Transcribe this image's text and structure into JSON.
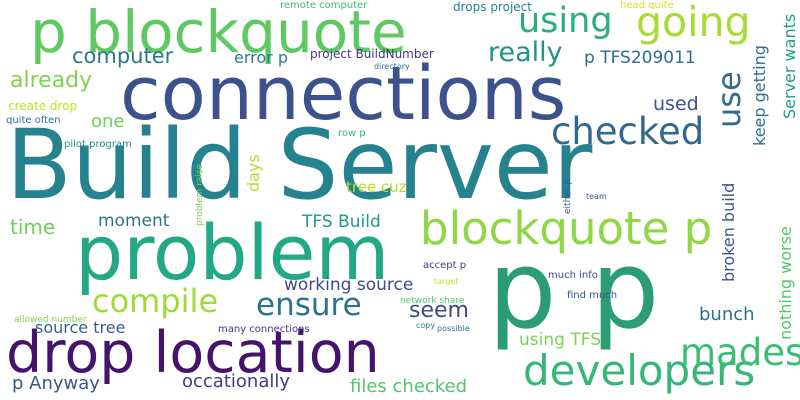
{
  "words": [
    {
      "id": "build-server",
      "text": "Build Server",
      "color": "#26828e"
    },
    {
      "id": "connections",
      "text": "connections",
      "color": "#3b528b"
    },
    {
      "id": "problem",
      "text": "problem",
      "color": "#22a884"
    },
    {
      "id": "p-p",
      "text": "p p",
      "color": "#2a9d74"
    },
    {
      "id": "drop-location",
      "text": "drop location",
      "color": "#44146b"
    },
    {
      "id": "p-blockquote",
      "text": "p blockquote",
      "color": "#5ec962"
    },
    {
      "id": "blockquote-p",
      "text": "blockquote p",
      "color": "#8fd744"
    },
    {
      "id": "developers",
      "text": "developers",
      "color": "#35b779"
    },
    {
      "id": "checked",
      "text": "checked",
      "color": "#31688e"
    },
    {
      "id": "compile",
      "text": "compile",
      "color": "#a0da39"
    },
    {
      "id": "ensure",
      "text": "ensure",
      "color": "#2c728e"
    },
    {
      "id": "using",
      "text": "using",
      "color": "#29af7f"
    },
    {
      "id": "going",
      "text": "going",
      "color": "#a8db34"
    },
    {
      "id": "mades",
      "text": "mades",
      "color": "#3dbc74"
    },
    {
      "id": "use",
      "text": "use",
      "color": "#2f6c8e"
    },
    {
      "id": "really",
      "text": "really",
      "color": "#20938c"
    },
    {
      "id": "computer",
      "text": "computer",
      "color": "#2a788e"
    },
    {
      "id": "already",
      "text": "already",
      "color": "#7fd34e"
    },
    {
      "id": "working-source",
      "text": "working source",
      "color": "#3e4a89"
    },
    {
      "id": "seem",
      "text": "seem",
      "color": "#3f4788"
    },
    {
      "id": "source-tree",
      "text": "source tree",
      "color": "#355f8d"
    },
    {
      "id": "occationally",
      "text": "occationally",
      "color": "#443a83"
    },
    {
      "id": "files-checked",
      "text": "files checked",
      "color": "#52c569"
    },
    {
      "id": "p-anyway",
      "text": "p Anyway",
      "color": "#39568c"
    },
    {
      "id": "moment",
      "text": "moment",
      "color": "#2c728e"
    },
    {
      "id": "time",
      "text": "time",
      "color": "#6ece58"
    },
    {
      "id": "tfs-build",
      "text": "TFS Build",
      "color": "#1f998a"
    },
    {
      "id": "tree-cuz",
      "text": "tree cuz",
      "color": "#b5de2b"
    },
    {
      "id": "using-tfs",
      "text": "using TFS",
      "color": "#7ad151"
    },
    {
      "id": "bunch",
      "text": "bunch",
      "color": "#2e6f8e"
    },
    {
      "id": "error-p",
      "text": "error p",
      "color": "#277f8e"
    },
    {
      "id": "p-tfs209011",
      "text": "p TFS209011",
      "color": "#2f6b8e"
    },
    {
      "id": "used",
      "text": "used",
      "color": "#3b528b"
    },
    {
      "id": "one",
      "text": "one",
      "color": "#6ece58"
    },
    {
      "id": "days",
      "text": "days",
      "color": "#b8de29"
    },
    {
      "id": "keep-getting",
      "text": "keep getting",
      "color": "#2e6e8e"
    },
    {
      "id": "server-wants",
      "text": "Server wants",
      "color": "#1f9e89"
    },
    {
      "id": "broken-build",
      "text": "broken build",
      "color": "#3a548c"
    },
    {
      "id": "nothing-worse",
      "text": "nothing worse",
      "color": "#52c569"
    },
    {
      "id": "create-drop",
      "text": "create drop",
      "color": "#c8e020"
    },
    {
      "id": "quite-often",
      "text": "quite often",
      "color": "#2c738e"
    },
    {
      "id": "pilot-program",
      "text": "pilot program",
      "color": "#23898e"
    },
    {
      "id": "project-buildnumber",
      "text": "project BuildNumber",
      "color": "#453781"
    },
    {
      "id": "remote-computer",
      "text": "remote computer",
      "color": "#3cbb75"
    },
    {
      "id": "drops-project",
      "text": "drops project",
      "color": "#25838e"
    },
    {
      "id": "head-quite",
      "text": "head quite",
      "color": "#d2e21b"
    },
    {
      "id": "directory",
      "text": "directory",
      "color": "#2d708e"
    },
    {
      "id": "row-p",
      "text": "row p",
      "color": "#35b779"
    },
    {
      "id": "problem-raise",
      "text": "problem raise",
      "color": "#7ad151"
    },
    {
      "id": "either-p",
      "text": "either p",
      "color": "#365c8d"
    },
    {
      "id": "team",
      "text": "team",
      "color": "#3b528b"
    },
    {
      "id": "accept-p",
      "text": "accept p",
      "color": "#433e85"
    },
    {
      "id": "much-info",
      "text": "much info",
      "color": "#3e4a89"
    },
    {
      "id": "find-much",
      "text": "find much",
      "color": "#3b528b"
    },
    {
      "id": "target",
      "text": "target",
      "color": "#c2df23"
    },
    {
      "id": "network-share",
      "text": "network share",
      "color": "#52c569"
    },
    {
      "id": "copy",
      "text": "copy",
      "color": "#2a788e"
    },
    {
      "id": "possible",
      "text": "possible",
      "color": "#2c728e"
    },
    {
      "id": "many-connections",
      "text": "many connections",
      "color": "#46337f"
    },
    {
      "id": "allowed-number",
      "text": "allowed number",
      "color": "#86d549"
    }
  ]
}
